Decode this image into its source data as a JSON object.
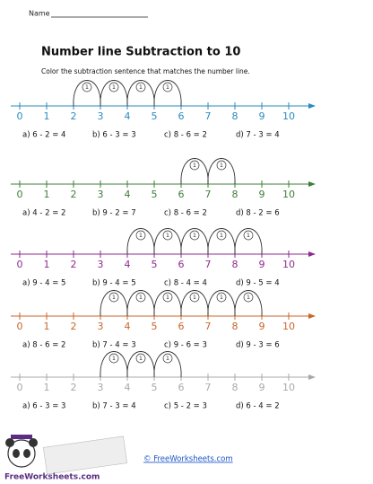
{
  "header": {
    "name_label": "Name",
    "title": "Number line Subtraction to 10",
    "instruction": "Color the subtraction sentence that matches the number line."
  },
  "number_labels": [
    "0",
    "1",
    "2",
    "3",
    "4",
    "5",
    "6",
    "7",
    "8",
    "9",
    "10"
  ],
  "problems": [
    {
      "color": "#2b8bbd",
      "hops": [
        {
          "start": 2,
          "label": "1"
        },
        {
          "start": 3,
          "label": "1"
        },
        {
          "start": 4,
          "label": "1"
        },
        {
          "start": 5,
          "label": "1"
        }
      ],
      "options": [
        "a) 6 - 2 = 4",
        "b) 6 - 3 = 3",
        "c) 8 - 6 = 2",
        "d) 7 - 3 = 4"
      ]
    },
    {
      "color": "#3f7d3a",
      "hops": [
        {
          "start": 6,
          "label": "1"
        },
        {
          "start": 7,
          "label": "1"
        }
      ],
      "options": [
        "a) 4 - 2 = 2",
        "b) 9 - 2 = 7",
        "c) 8 - 6 = 2",
        "d) 8 - 2 = 6"
      ]
    },
    {
      "color": "#8e2a8e",
      "hops": [
        {
          "start": 4,
          "label": "1"
        },
        {
          "start": 5,
          "label": "1"
        },
        {
          "start": 6,
          "label": "1"
        },
        {
          "start": 7,
          "label": "1"
        },
        {
          "start": 8,
          "label": "1"
        }
      ],
      "options": [
        "a) 9 - 4 = 5",
        "b) 9 - 4 = 5",
        "c) 8 - 4 = 4",
        "d) 9 - 5 = 4"
      ]
    },
    {
      "color": "#c8662b",
      "hops": [
        {
          "start": 3,
          "label": "1"
        },
        {
          "start": 4,
          "label": "1"
        },
        {
          "start": 5,
          "label": "1"
        },
        {
          "start": 6,
          "label": "1"
        },
        {
          "start": 7,
          "label": "1"
        },
        {
          "start": 8,
          "label": "1"
        }
      ],
      "options": [
        "a) 8 - 6 = 2",
        "b) 7 - 4 = 3",
        "c) 9 - 6 = 3",
        "d) 9 - 3 = 6"
      ]
    },
    {
      "color": "#a8a8a8",
      "hops": [
        {
          "start": 3,
          "label": "1"
        },
        {
          "start": 4,
          "label": "1"
        },
        {
          "start": 5,
          "label": "1"
        }
      ],
      "options": [
        "a) 6 - 3 = 3",
        "b) 7 - 3 = 4",
        "c) 5 - 2 = 3",
        "d) 6 - 4 = 2"
      ]
    }
  ],
  "footer": {
    "copyright": "© FreeWorksheets.com",
    "logo_text": "FreeWorksheets.com"
  }
}
